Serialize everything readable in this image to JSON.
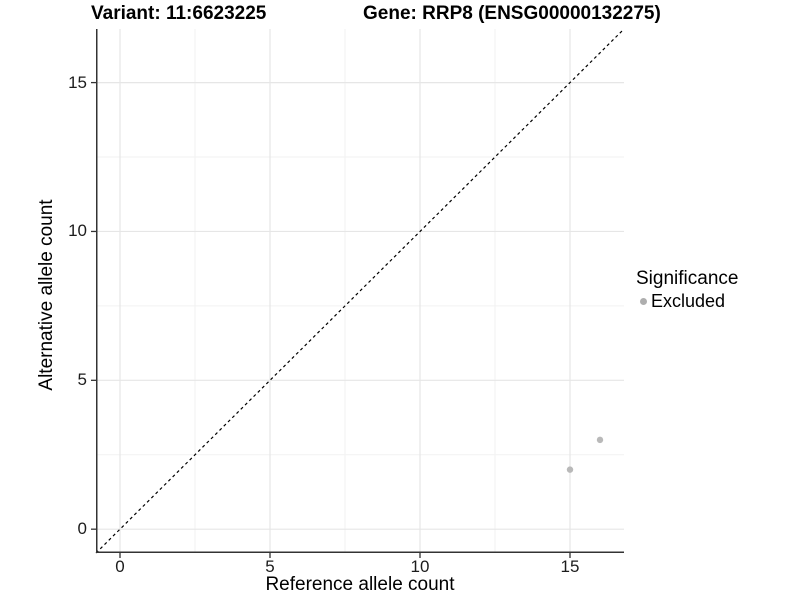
{
  "header": {
    "variant_title": "Variant: 11:6623225",
    "gene_title": "Gene: RRP8 (ENSG00000132275)"
  },
  "chart_data": {
    "type": "scatter",
    "title": "Variant: 11:6623225 / Gene: RRP8 (ENSG00000132275)",
    "xlabel": "Reference allele count",
    "ylabel": "Alternative allele count",
    "xlim": [
      -0.8,
      16.8
    ],
    "ylim": [
      -0.8,
      16.8
    ],
    "xticks": [
      0,
      5,
      10,
      15
    ],
    "yticks": [
      0,
      5,
      10,
      15
    ],
    "minor_xticks": [
      2.5,
      7.5,
      12.5
    ],
    "minor_yticks": [
      2.5,
      7.5,
      12.5
    ],
    "grid": "major+minor",
    "identity_line": {
      "slope": 1,
      "intercept": 0,
      "style": "dashed",
      "color": "#000000"
    },
    "series": [
      {
        "name": "Excluded",
        "color": "#b9b9b9",
        "point_radius": 3.2,
        "points": [
          [
            15,
            2
          ],
          [
            16,
            3
          ]
        ]
      }
    ],
    "legend": {
      "title": "Significance",
      "position": "right",
      "entries": [
        {
          "label": "Excluded",
          "color": "#aeaeae"
        }
      ]
    }
  },
  "colors": {
    "background": "#ffffff",
    "grid_major": "#e6e6e6",
    "grid_minor": "#f2f2f2",
    "axis_line": "#333333",
    "tick_mark": "#333333",
    "tick_text": "#1c1c1c"
  }
}
